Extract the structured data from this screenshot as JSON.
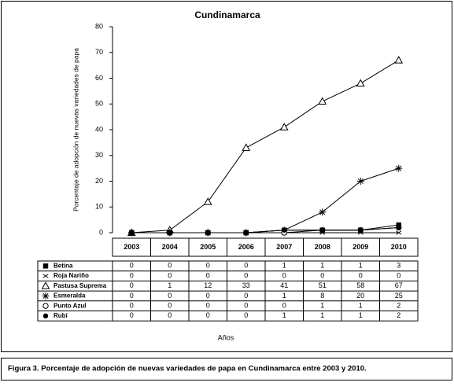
{
  "chart_data": {
    "type": "line",
    "title": "Cundinamarca",
    "y_label": "Porcentaje de adopción de nuevas variedades de papa",
    "x_label": "Años",
    "caption": "Figura 3.  Porcentaje de adopción de nuevas variedades de papa en Cundinamarca entre 2003 y 2010.",
    "categories": [
      "2003",
      "2004",
      "2005",
      "2006",
      "2007",
      "2008",
      "2009",
      "2010"
    ],
    "ylim": [
      0,
      80
    ],
    "yticks": [
      0,
      10,
      20,
      30,
      40,
      50,
      60,
      70,
      80
    ],
    "series": [
      {
        "name": "Betina",
        "color": "#000000",
        "marker": "filled-square",
        "values": [
          0,
          0,
          0,
          0,
          1,
          1,
          1,
          3
        ]
      },
      {
        "name": "Roja Nariño",
        "color": "#000000",
        "marker": "x",
        "values": [
          0,
          0,
          0,
          0,
          0,
          0,
          0,
          0
        ]
      },
      {
        "name": "Pastusa Suprema",
        "color": "#000000",
        "marker": "open-triangle",
        "values": [
          0,
          1,
          12,
          33,
          41,
          51,
          58,
          67
        ]
      },
      {
        "name": "Esmeralda",
        "color": "#000000",
        "marker": "asterisk",
        "values": [
          0,
          0,
          0,
          0,
          1,
          8,
          20,
          25
        ]
      },
      {
        "name": "Punto Azul",
        "color": "#000000",
        "marker": "open-circle",
        "values": [
          0,
          0,
          0,
          0,
          0,
          1,
          1,
          2
        ]
      },
      {
        "name": "Rubí",
        "color": "#000000",
        "marker": "filled-circle",
        "values": [
          0,
          0,
          0,
          0,
          1,
          1,
          1,
          2
        ]
      }
    ]
  }
}
